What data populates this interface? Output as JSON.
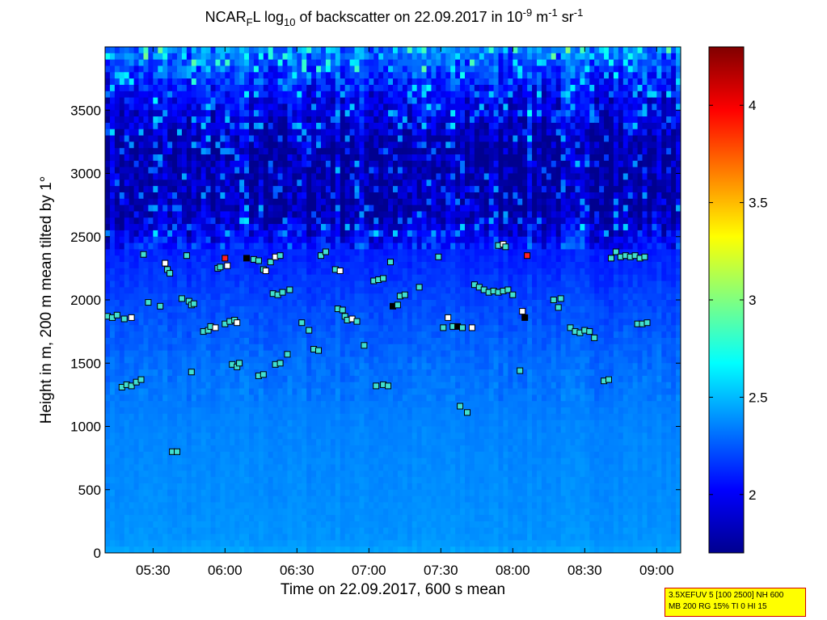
{
  "title": {
    "part1": "NCAR",
    "sub1": "F",
    "part2": "L log",
    "sub2": "10",
    "part3": " of backscatter on 22.09.2017 in 10",
    "sup1": "-9",
    "part4": " m",
    "sup2": "-1",
    "part5": " sr",
    "sup3": "-1"
  },
  "info_box": {
    "line1": "3.5XEFUV 5 [100 2500] NH 600",
    "line2": "MB 200 RG 15% TI 0 HI 15"
  },
  "colors": {
    "cmap": [
      "#00008f",
      "#0000ff",
      "#0080ff",
      "#00ffff",
      "#80ff80",
      "#ffff00",
      "#ff8000",
      "#ff0000",
      "#800000"
    ]
  },
  "chart_data": {
    "type": "heatmap",
    "title": "NCARFL log10 of backscatter on 22.09.2017 in 10-9 m-1 sr-1",
    "xlabel": "Time on 22.09.2017, 600 s mean",
    "ylabel": "Height in m, 200 m mean tilted by 1°",
    "x_range": [
      "05:10",
      "09:10"
    ],
    "ylim": [
      0,
      4000
    ],
    "x_ticks": [
      "05:30",
      "06:00",
      "06:30",
      "07:00",
      "07:30",
      "08:00",
      "08:30",
      "09:00"
    ],
    "y_ticks": [
      0,
      500,
      1000,
      1500,
      2000,
      2500,
      3000,
      3500
    ],
    "colorbar": {
      "range": [
        1.7,
        4.3
      ],
      "ticks": [
        "2",
        "2.5",
        "3",
        "3.5",
        "4"
      ]
    },
    "field_profile": [
      {
        "height": 0,
        "value": 2.45
      },
      {
        "height": 100,
        "value": 2.4
      },
      {
        "height": 500,
        "value": 2.38
      },
      {
        "height": 1000,
        "value": 2.36
      },
      {
        "height": 1500,
        "value": 2.3
      },
      {
        "height": 2000,
        "value": 2.2
      },
      {
        "height": 2400,
        "value": 2.1
      },
      {
        "height": 2700,
        "value": 1.8
      },
      {
        "height": 3200,
        "value": 1.78
      },
      {
        "height": 3600,
        "value": 2.0
      },
      {
        "height": 4000,
        "value": 2.35
      }
    ],
    "markers": [
      {
        "t": "05:11",
        "h": 1870,
        "c": "#40e0d0"
      },
      {
        "t": "05:13",
        "h": 1860,
        "c": "#40e0d0"
      },
      {
        "t": "05:15",
        "h": 1880,
        "c": "#40e0d0"
      },
      {
        "t": "05:18",
        "h": 1850,
        "c": "#40e0d0"
      },
      {
        "t": "05:21",
        "h": 1860,
        "c": "#ffffff"
      },
      {
        "t": "05:17",
        "h": 1310,
        "c": "#40e0d0"
      },
      {
        "t": "05:19",
        "h": 1330,
        "c": "#40e0d0"
      },
      {
        "t": "05:21",
        "h": 1320,
        "c": "#40e0d0"
      },
      {
        "t": "05:23",
        "h": 1350,
        "c": "#40e0d0"
      },
      {
        "t": "05:25",
        "h": 1370,
        "c": "#40e0d0"
      },
      {
        "t": "05:26",
        "h": 2360,
        "c": "#40e0d0"
      },
      {
        "t": "05:28",
        "h": 1980,
        "c": "#40e0d0"
      },
      {
        "t": "05:33",
        "h": 1950,
        "c": "#40e0d0"
      },
      {
        "t": "05:35",
        "h": 2290,
        "c": "#ffffff"
      },
      {
        "t": "05:36",
        "h": 2240,
        "c": "#40e0d0"
      },
      {
        "t": "05:37",
        "h": 2210,
        "c": "#40e0d0"
      },
      {
        "t": "05:38",
        "h": 800,
        "c": "#40e0d0"
      },
      {
        "t": "05:40",
        "h": 800,
        "c": "#40e0d0"
      },
      {
        "t": "05:42",
        "h": 2010,
        "c": "#40e0d0"
      },
      {
        "t": "05:44",
        "h": 2350,
        "c": "#40e0d0"
      },
      {
        "t": "05:45",
        "h": 1990,
        "c": "#40e0d0"
      },
      {
        "t": "05:46",
        "h": 1960,
        "c": "#40e0d0"
      },
      {
        "t": "05:47",
        "h": 1970,
        "c": "#40e0d0"
      },
      {
        "t": "05:46",
        "h": 1430,
        "c": "#40e0d0"
      },
      {
        "t": "05:51",
        "h": 1750,
        "c": "#40e0d0"
      },
      {
        "t": "05:53",
        "h": 1760,
        "c": "#40e0d0"
      },
      {
        "t": "05:54",
        "h": 1790,
        "c": "#40e0d0"
      },
      {
        "t": "05:56",
        "h": 1780,
        "c": "#ffffff"
      },
      {
        "t": "05:57",
        "h": 2250,
        "c": "#40e0d0"
      },
      {
        "t": "05:58",
        "h": 2260,
        "c": "#40e0d0"
      },
      {
        "t": "06:00",
        "h": 2330,
        "c": "#ff2020"
      },
      {
        "t": "06:01",
        "h": 2270,
        "c": "#ffffff"
      },
      {
        "t": "06:00",
        "h": 1810,
        "c": "#40e0d0"
      },
      {
        "t": "06:02",
        "h": 1830,
        "c": "#40e0d0"
      },
      {
        "t": "06:04",
        "h": 1840,
        "c": "#40e0d0"
      },
      {
        "t": "06:05",
        "h": 1820,
        "c": "#ffffff"
      },
      {
        "t": "06:03",
        "h": 1490,
        "c": "#40e0d0"
      },
      {
        "t": "06:05",
        "h": 1470,
        "c": "#40e0d0"
      },
      {
        "t": "06:06",
        "h": 1500,
        "c": "#40e0d0"
      },
      {
        "t": "06:09",
        "h": 2330,
        "c": "#000000"
      },
      {
        "t": "06:12",
        "h": 2320,
        "c": "#40e0d0"
      },
      {
        "t": "06:14",
        "h": 2310,
        "c": "#40e0d0"
      },
      {
        "t": "06:16",
        "h": 2240,
        "c": "#40e0d0"
      },
      {
        "t": "06:17",
        "h": 2230,
        "c": "#ffffff"
      },
      {
        "t": "06:14",
        "h": 1400,
        "c": "#40e0d0"
      },
      {
        "t": "06:16",
        "h": 1410,
        "c": "#40e0d0"
      },
      {
        "t": "06:19",
        "h": 2300,
        "c": "#40e0d0"
      },
      {
        "t": "06:21",
        "h": 2340,
        "c": "#ffffff"
      },
      {
        "t": "06:23",
        "h": 2350,
        "c": "#40e0d0"
      },
      {
        "t": "06:20",
        "h": 2050,
        "c": "#40e0d0"
      },
      {
        "t": "06:22",
        "h": 2040,
        "c": "#40e0d0"
      },
      {
        "t": "06:24",
        "h": 2060,
        "c": "#40e0d0"
      },
      {
        "t": "06:21",
        "h": 1490,
        "c": "#40e0d0"
      },
      {
        "t": "06:23",
        "h": 1500,
        "c": "#40e0d0"
      },
      {
        "t": "06:26",
        "h": 1570,
        "c": "#40e0d0"
      },
      {
        "t": "06:27",
        "h": 2080,
        "c": "#40e0d0"
      },
      {
        "t": "06:32",
        "h": 1820,
        "c": "#40e0d0"
      },
      {
        "t": "06:35",
        "h": 1760,
        "c": "#40e0d0"
      },
      {
        "t": "06:37",
        "h": 1610,
        "c": "#40e0d0"
      },
      {
        "t": "06:39",
        "h": 1600,
        "c": "#40e0d0"
      },
      {
        "t": "06:40",
        "h": 2350,
        "c": "#40e0d0"
      },
      {
        "t": "06:42",
        "h": 2380,
        "c": "#40e0d0"
      },
      {
        "t": "06:46",
        "h": 2240,
        "c": "#40e0d0"
      },
      {
        "t": "06:48",
        "h": 2230,
        "c": "#ffffff"
      },
      {
        "t": "06:47",
        "h": 1930,
        "c": "#40e0d0"
      },
      {
        "t": "06:49",
        "h": 1920,
        "c": "#40e0d0"
      },
      {
        "t": "06:50",
        "h": 1870,
        "c": "#40e0d0"
      },
      {
        "t": "06:51",
        "h": 1840,
        "c": "#40e0d0"
      },
      {
        "t": "06:53",
        "h": 1850,
        "c": "#ffffff"
      },
      {
        "t": "06:55",
        "h": 1830,
        "c": "#40e0d0"
      },
      {
        "t": "06:58",
        "h": 1640,
        "c": "#40e0d0"
      },
      {
        "t": "07:02",
        "h": 2150,
        "c": "#40e0d0"
      },
      {
        "t": "07:04",
        "h": 2160,
        "c": "#40e0d0"
      },
      {
        "t": "07:06",
        "h": 2170,
        "c": "#40e0d0"
      },
      {
        "t": "07:03",
        "h": 1320,
        "c": "#40e0d0"
      },
      {
        "t": "07:06",
        "h": 1330,
        "c": "#40e0d0"
      },
      {
        "t": "07:08",
        "h": 1320,
        "c": "#40e0d0"
      },
      {
        "t": "07:09",
        "h": 2300,
        "c": "#40e0d0"
      },
      {
        "t": "07:10",
        "h": 1950,
        "c": "#000000"
      },
      {
        "t": "07:12",
        "h": 1960,
        "c": "#40e0d0"
      },
      {
        "t": "07:13",
        "h": 2030,
        "c": "#40e0d0"
      },
      {
        "t": "07:15",
        "h": 2040,
        "c": "#40e0d0"
      },
      {
        "t": "07:21",
        "h": 2100,
        "c": "#40e0d0"
      },
      {
        "t": "07:29",
        "h": 2340,
        "c": "#40e0d0"
      },
      {
        "t": "07:31",
        "h": 1780,
        "c": "#40e0d0"
      },
      {
        "t": "07:33",
        "h": 1860,
        "c": "#ffffff"
      },
      {
        "t": "07:35",
        "h": 1790,
        "c": "#40e0d0"
      },
      {
        "t": "07:37",
        "h": 1790,
        "c": "#000000"
      },
      {
        "t": "07:39",
        "h": 1780,
        "c": "#40e0d0"
      },
      {
        "t": "07:38",
        "h": 1160,
        "c": "#40e0d0"
      },
      {
        "t": "07:41",
        "h": 1110,
        "c": "#40e0d0"
      },
      {
        "t": "07:43",
        "h": 1780,
        "c": "#ffffff"
      },
      {
        "t": "07:44",
        "h": 2120,
        "c": "#40e0d0"
      },
      {
        "t": "07:46",
        "h": 2100,
        "c": "#40e0d0"
      },
      {
        "t": "07:48",
        "h": 2080,
        "c": "#40e0d0"
      },
      {
        "t": "07:50",
        "h": 2060,
        "c": "#40e0d0"
      },
      {
        "t": "07:52",
        "h": 2070,
        "c": "#40e0d0"
      },
      {
        "t": "07:54",
        "h": 2060,
        "c": "#40e0d0"
      },
      {
        "t": "07:56",
        "h": 2070,
        "c": "#40e0d0"
      },
      {
        "t": "07:58",
        "h": 2080,
        "c": "#40e0d0"
      },
      {
        "t": "08:00",
        "h": 2040,
        "c": "#40e0d0"
      },
      {
        "t": "07:54",
        "h": 2430,
        "c": "#40e0d0"
      },
      {
        "t": "07:56",
        "h": 2440,
        "c": "#ffffff"
      },
      {
        "t": "07:57",
        "h": 2420,
        "c": "#40e0d0"
      },
      {
        "t": "08:03",
        "h": 1440,
        "c": "#40e0d0"
      },
      {
        "t": "08:04",
        "h": 1910,
        "c": "#ffffff"
      },
      {
        "t": "08:05",
        "h": 1860,
        "c": "#000000"
      },
      {
        "t": "08:06",
        "h": 2350,
        "c": "#ff2020"
      },
      {
        "t": "08:17",
        "h": 2000,
        "c": "#40e0d0"
      },
      {
        "t": "08:19",
        "h": 1940,
        "c": "#40e0d0"
      },
      {
        "t": "08:20",
        "h": 2010,
        "c": "#40e0d0"
      },
      {
        "t": "08:24",
        "h": 1780,
        "c": "#40e0d0"
      },
      {
        "t": "08:26",
        "h": 1750,
        "c": "#40e0d0"
      },
      {
        "t": "08:28",
        "h": 1740,
        "c": "#40e0d0"
      },
      {
        "t": "08:30",
        "h": 1760,
        "c": "#40e0d0"
      },
      {
        "t": "08:32",
        "h": 1750,
        "c": "#40e0d0"
      },
      {
        "t": "08:34",
        "h": 1700,
        "c": "#40e0d0"
      },
      {
        "t": "08:38",
        "h": 1360,
        "c": "#40e0d0"
      },
      {
        "t": "08:40",
        "h": 1370,
        "c": "#40e0d0"
      },
      {
        "t": "08:41",
        "h": 2330,
        "c": "#40e0d0"
      },
      {
        "t": "08:43",
        "h": 2380,
        "c": "#40e0d0"
      },
      {
        "t": "08:45",
        "h": 2340,
        "c": "#40e0d0"
      },
      {
        "t": "08:47",
        "h": 2350,
        "c": "#40e0d0"
      },
      {
        "t": "08:49",
        "h": 2340,
        "c": "#40e0d0"
      },
      {
        "t": "08:51",
        "h": 2350,
        "c": "#40e0d0"
      },
      {
        "t": "08:53",
        "h": 2330,
        "c": "#40e0d0"
      },
      {
        "t": "08:55",
        "h": 2340,
        "c": "#40e0d0"
      },
      {
        "t": "08:52",
        "h": 1810,
        "c": "#40e0d0"
      },
      {
        "t": "08:54",
        "h": 1810,
        "c": "#40e0d0"
      },
      {
        "t": "08:56",
        "h": 1820,
        "c": "#40e0d0"
      }
    ]
  }
}
